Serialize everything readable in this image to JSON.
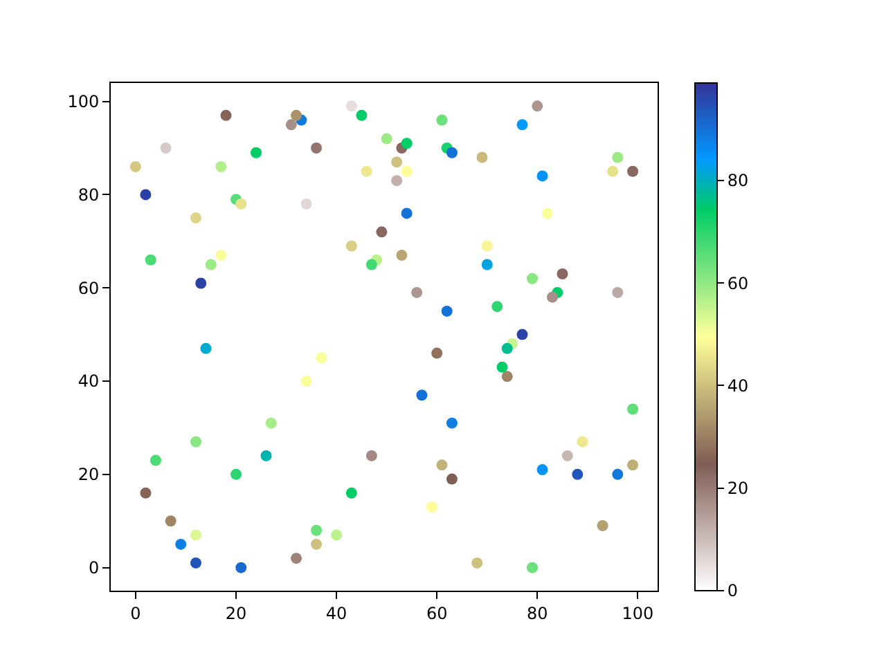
{
  "chart_data": {
    "type": "scatter",
    "marker": "circle",
    "x": [
      0,
      6,
      2,
      3,
      18,
      12,
      17,
      24,
      20,
      21,
      15,
      17,
      13,
      14,
      33,
      31,
      32,
      36,
      34,
      43,
      45,
      46,
      43,
      48,
      47,
      49,
      34,
      37,
      50,
      53,
      54,
      52,
      54,
      52,
      54,
      56,
      53,
      61,
      62,
      63,
      69,
      77,
      80,
      81,
      70,
      70,
      72,
      82,
      79,
      84,
      83,
      85,
      62,
      60,
      75,
      74,
      77,
      74,
      73,
      95,
      96,
      99,
      96,
      57,
      63,
      47,
      61,
      63,
      59,
      68,
      79,
      81,
      86,
      89,
      88,
      96,
      99,
      99,
      93,
      2,
      4,
      7,
      12,
      9,
      12,
      12,
      21,
      20,
      26,
      27,
      32,
      36,
      36,
      40,
      43
    ],
    "values": [
      86,
      90,
      80,
      66,
      97,
      75,
      86,
      89,
      79,
      78,
      65,
      67,
      61,
      47,
      96,
      95,
      97,
      90,
      78,
      99,
      97,
      85,
      69,
      66,
      65,
      72,
      40,
      45,
      92,
      90,
      91,
      87,
      85,
      83,
      76,
      59,
      67,
      96,
      90,
      89,
      88,
      95,
      99,
      84,
      65,
      69,
      56,
      76,
      62,
      59,
      58,
      63,
      55,
      46,
      48,
      47,
      50,
      41,
      43,
      85,
      88,
      85,
      59,
      37,
      31,
      24,
      22,
      19,
      13,
      1,
      0,
      21,
      24,
      27,
      20,
      20,
      22,
      34,
      9,
      16,
      23,
      10,
      27,
      5,
      7,
      1,
      0,
      20,
      24,
      31,
      2,
      8,
      5,
      7,
      16
    ],
    "cvalues": [
      41,
      8,
      97,
      67,
      26,
      43,
      57,
      74,
      66,
      45,
      59,
      50,
      97,
      81,
      89,
      17,
      33,
      21,
      6,
      5,
      74,
      46,
      42,
      56,
      68,
      23,
      50,
      50,
      59,
      23,
      74,
      40,
      49,
      12,
      90,
      16,
      36,
      64,
      72,
      90,
      39,
      84,
      16,
      85,
      82,
      48,
      70,
      50,
      61,
      74,
      17,
      23,
      90,
      28,
      55,
      77,
      97,
      31,
      74,
      45,
      59,
      23,
      13,
      90,
      88,
      18,
      38,
      25,
      49,
      40,
      64,
      85,
      11,
      46,
      94,
      89,
      37,
      65,
      35,
      26,
      67,
      31,
      61,
      88,
      53,
      94,
      91,
      70,
      79,
      58,
      19,
      64,
      40,
      56,
      74
    ],
    "clim": [
      0,
      99
    ],
    "cticks": [
      0,
      20,
      40,
      60,
      80
    ],
    "xlim": [
      -4.95,
      103.95
    ],
    "ylim": [
      -4.95,
      103.95
    ],
    "xticks": [
      0,
      20,
      40,
      60,
      80,
      100
    ],
    "yticks": [
      0,
      20,
      40,
      60,
      80,
      100
    ]
  }
}
